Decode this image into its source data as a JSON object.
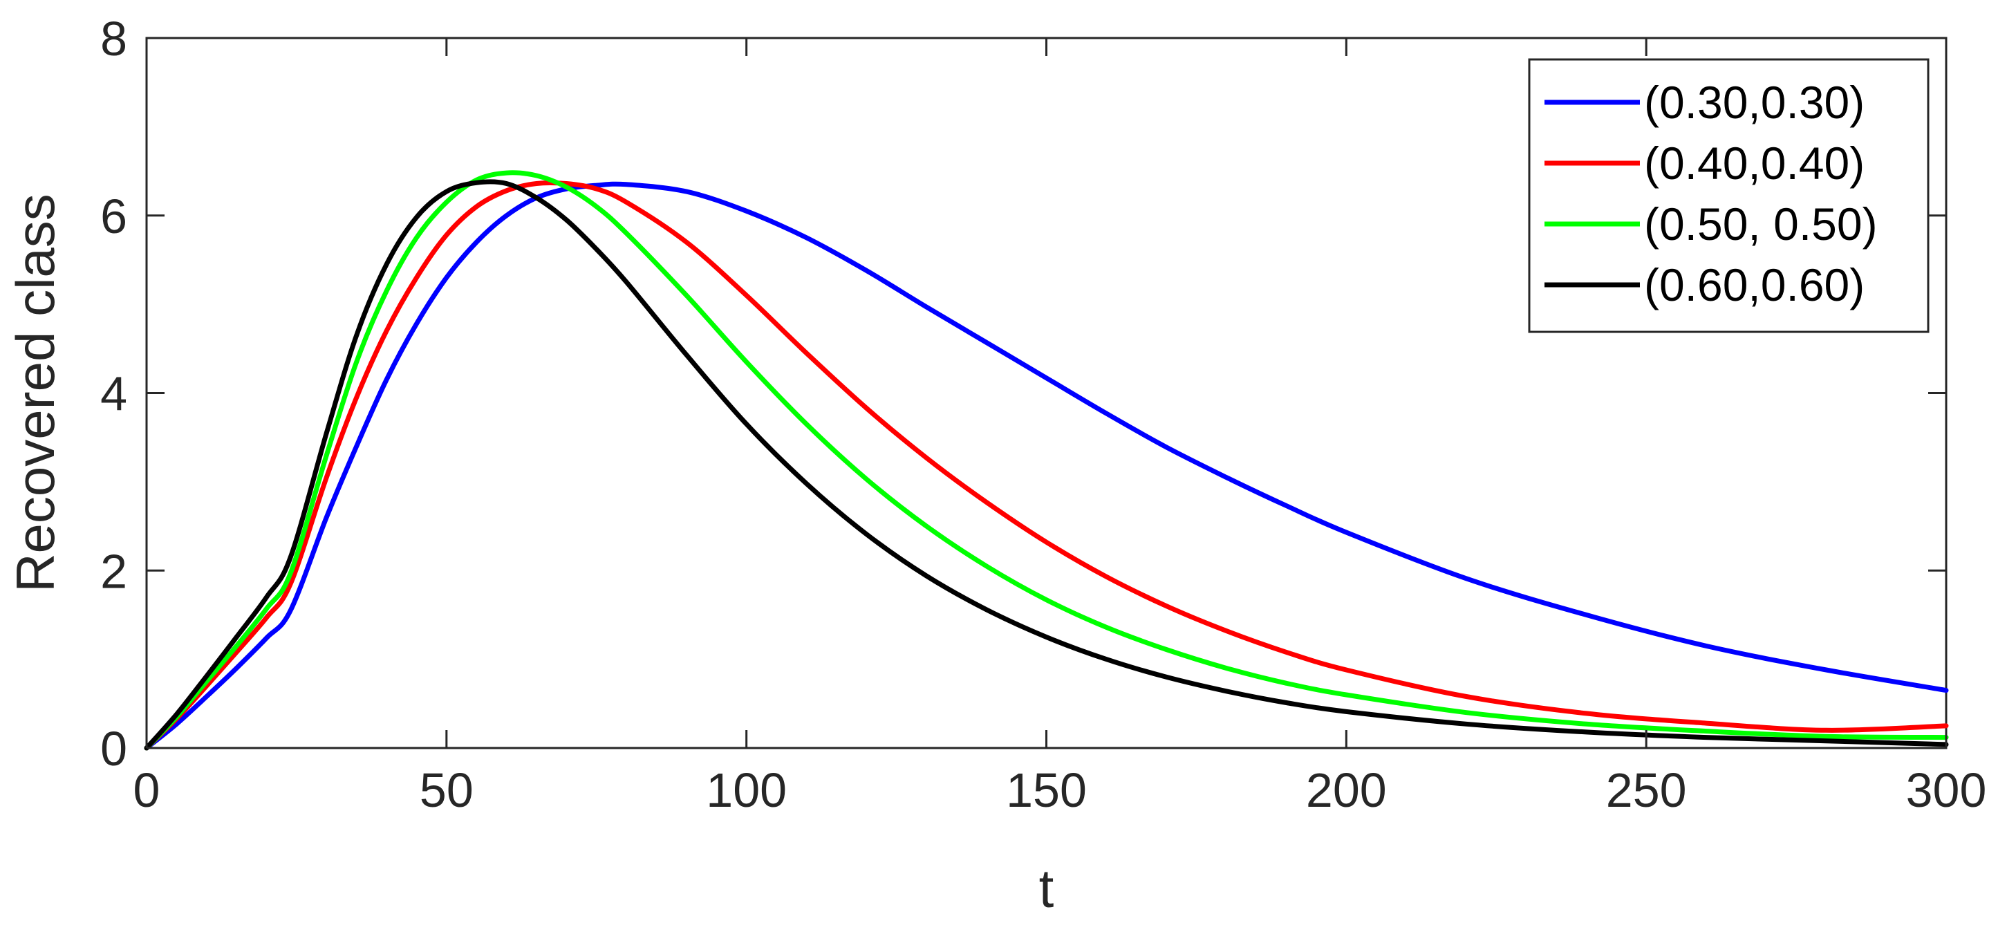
{
  "chart_data": {
    "type": "line",
    "title": "",
    "xlabel": "t",
    "ylabel": "Recovered class",
    "xlim": [
      0,
      300
    ],
    "ylim": [
      0,
      8
    ],
    "xticks": [
      0,
      50,
      100,
      150,
      200,
      250,
      300
    ],
    "yticks": [
      0,
      2,
      4,
      6,
      8
    ],
    "grid": false,
    "legend_position": "top-right",
    "x": [
      0,
      5,
      10,
      15,
      20,
      24,
      30,
      35,
      40,
      45,
      50,
      55,
      60,
      65,
      70,
      75,
      80,
      90,
      100,
      110,
      120,
      130,
      140,
      150,
      160,
      170,
      180,
      190,
      200,
      220,
      240,
      260,
      280,
      300
    ],
    "series": [
      {
        "name": "(0.30,0.30)",
        "color": "#0000ff",
        "values": [
          0,
          0.27,
          0.58,
          0.9,
          1.24,
          1.55,
          2.6,
          3.4,
          4.15,
          4.78,
          5.3,
          5.7,
          6.0,
          6.2,
          6.3,
          6.34,
          6.35,
          6.27,
          6.05,
          5.75,
          5.38,
          4.97,
          4.57,
          4.17,
          3.77,
          3.39,
          3.05,
          2.73,
          2.43,
          1.91,
          1.5,
          1.15,
          0.88,
          0.65
        ]
      },
      {
        "name": "(0.40,0.40)",
        "color": "#ff0000",
        "values": [
          0,
          0.33,
          0.7,
          1.08,
          1.47,
          1.85,
          3.05,
          3.95,
          4.7,
          5.3,
          5.78,
          6.1,
          6.28,
          6.36,
          6.36,
          6.3,
          6.15,
          5.7,
          5.1,
          4.45,
          3.83,
          3.27,
          2.77,
          2.32,
          1.93,
          1.6,
          1.32,
          1.08,
          0.88,
          0.58,
          0.39,
          0.28,
          0.2,
          0.25
        ]
      },
      {
        "name": "(0.50, 0.50)",
        "color": "#00ff00",
        "values": [
          0,
          0.35,
          0.75,
          1.15,
          1.57,
          1.97,
          3.3,
          4.35,
          5.15,
          5.75,
          6.15,
          6.4,
          6.48,
          6.45,
          6.32,
          6.1,
          5.8,
          5.1,
          4.35,
          3.65,
          3.03,
          2.5,
          2.05,
          1.67,
          1.36,
          1.11,
          0.9,
          0.73,
          0.6,
          0.4,
          0.27,
          0.19,
          0.13,
          0.12
        ]
      },
      {
        "name": "(0.60,0.60)",
        "color": "#000000",
        "values": [
          0,
          0.38,
          0.81,
          1.25,
          1.7,
          2.15,
          3.55,
          4.65,
          5.45,
          5.98,
          6.27,
          6.37,
          6.36,
          6.2,
          5.95,
          5.62,
          5.25,
          4.43,
          3.65,
          2.98,
          2.41,
          1.94,
          1.56,
          1.25,
          1.0,
          0.8,
          0.64,
          0.51,
          0.41,
          0.27,
          0.18,
          0.12,
          0.08,
          0.04
        ]
      }
    ]
  }
}
